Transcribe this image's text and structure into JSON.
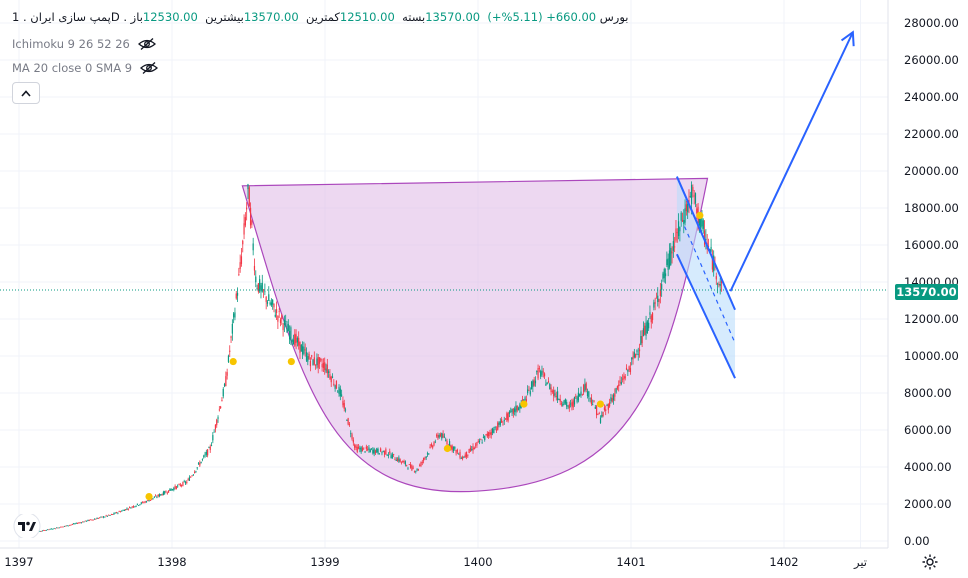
{
  "header": {
    "symbol": "پمپ سازی ایران",
    "interval": "1D",
    "exchange": "بورس",
    "sep": ".",
    "open_label": "باز",
    "open_value": "12530.00",
    "high_label": "بیشترین",
    "high_value": "13570.00",
    "low_label": "کمترین",
    "low_value": "12510.00",
    "close_label": "بسته",
    "close_value": "13570.00",
    "change": "660.00+ (5.11%+)"
  },
  "indicators": [
    {
      "label": "Ichimoku 9 26 52 26",
      "icon": "eye-off-icon"
    },
    {
      "label": "MA 20 close 0 SMA 9",
      "icon": "eye-off-icon"
    }
  ],
  "collapse_icon": "chevron-up-icon",
  "price_tag": "13570.00",
  "colors": {
    "up": "#089981",
    "down": "#f23645",
    "shape_fill": "#e1bee7",
    "shape_stroke": "#ab47bc",
    "trend": "#2962ff",
    "flag_fill": "#bbdefb",
    "dividend_marker": "#f7c500",
    "last_price_line": "#089981"
  },
  "chart_data": {
    "type": "candlestick",
    "y_axis": {
      "min": 0,
      "max": 28000,
      "ticks": [
        "0.00",
        "2000.00",
        "4000.00",
        "6000.00",
        "8000.00",
        "10000.00",
        "12000.00",
        "14000.00",
        "16000.00",
        "18000.00",
        "20000.00",
        "22000.00",
        "24000.00",
        "26000.00",
        "28000.00"
      ]
    },
    "x_axis": {
      "ticks": [
        "1397",
        "1398",
        "1399",
        "1400",
        "1401",
        "1402",
        "تیر"
      ]
    },
    "last_price": 13570,
    "price_path": [
      {
        "x": 1397.0,
        "y": 300
      },
      {
        "x": 1397.3,
        "y": 800
      },
      {
        "x": 1397.6,
        "y": 1400
      },
      {
        "x": 1397.85,
        "y": 2200
      },
      {
        "x": 1398.1,
        "y": 3200
      },
      {
        "x": 1398.25,
        "y": 5000
      },
      {
        "x": 1398.35,
        "y": 8500
      },
      {
        "x": 1398.45,
        "y": 15000
      },
      {
        "x": 1398.5,
        "y": 19000
      },
      {
        "x": 1398.55,
        "y": 14000
      },
      {
        "x": 1398.75,
        "y": 11500
      },
      {
        "x": 1398.9,
        "y": 9800
      },
      {
        "x": 1399.0,
        "y": 9500
      },
      {
        "x": 1399.1,
        "y": 8000
      },
      {
        "x": 1399.2,
        "y": 5000
      },
      {
        "x": 1399.4,
        "y": 4800
      },
      {
        "x": 1399.6,
        "y": 3800
      },
      {
        "x": 1399.75,
        "y": 5800
      },
      {
        "x": 1399.9,
        "y": 4500
      },
      {
        "x": 1400.1,
        "y": 6000
      },
      {
        "x": 1400.3,
        "y": 7500
      },
      {
        "x": 1400.4,
        "y": 9200
      },
      {
        "x": 1400.5,
        "y": 8000
      },
      {
        "x": 1400.6,
        "y": 7200
      },
      {
        "x": 1400.7,
        "y": 8400
      },
      {
        "x": 1400.8,
        "y": 6600
      },
      {
        "x": 1401.0,
        "y": 9500
      },
      {
        "x": 1401.15,
        "y": 12500
      },
      {
        "x": 1401.3,
        "y": 16500
      },
      {
        "x": 1401.4,
        "y": 18800
      },
      {
        "x": 1401.5,
        "y": 16000
      },
      {
        "x": 1401.6,
        "y": 13500
      }
    ],
    "dividend_markers": [
      {
        "x": 1397.85,
        "y": 2400
      },
      {
        "x": 1398.4,
        "y": 9700
      },
      {
        "x": 1398.78,
        "y": 9700
      },
      {
        "x": 1399.8,
        "y": 5000
      },
      {
        "x": 1400.3,
        "y": 7400
      },
      {
        "x": 1400.8,
        "y": 7400
      },
      {
        "x": 1401.45,
        "y": 17600
      }
    ],
    "drawings": {
      "cup": {
        "left": {
          "x": 1398.46,
          "y": 19200
        },
        "right": {
          "x": 1401.5,
          "y": 19600
        },
        "bottom": {
          "x": 1400.0,
          "y": 2700
        }
      },
      "flag_upper": [
        {
          "x": 1401.3,
          "y": 19700
        },
        {
          "x": 1401.68,
          "y": 12500
        }
      ],
      "flag_lower": [
        {
          "x": 1401.3,
          "y": 15500
        },
        {
          "x": 1401.68,
          "y": 8800
        }
      ],
      "breakout_arrow": [
        {
          "x": 1401.65,
          "y": 13500
        },
        {
          "x": 1402.45,
          "y": 27500
        }
      ],
      "flag_dashed": [
        {
          "x": 1401.35,
          "y": 17000
        },
        {
          "x": 1401.68,
          "y": 10700
        }
      ]
    }
  }
}
